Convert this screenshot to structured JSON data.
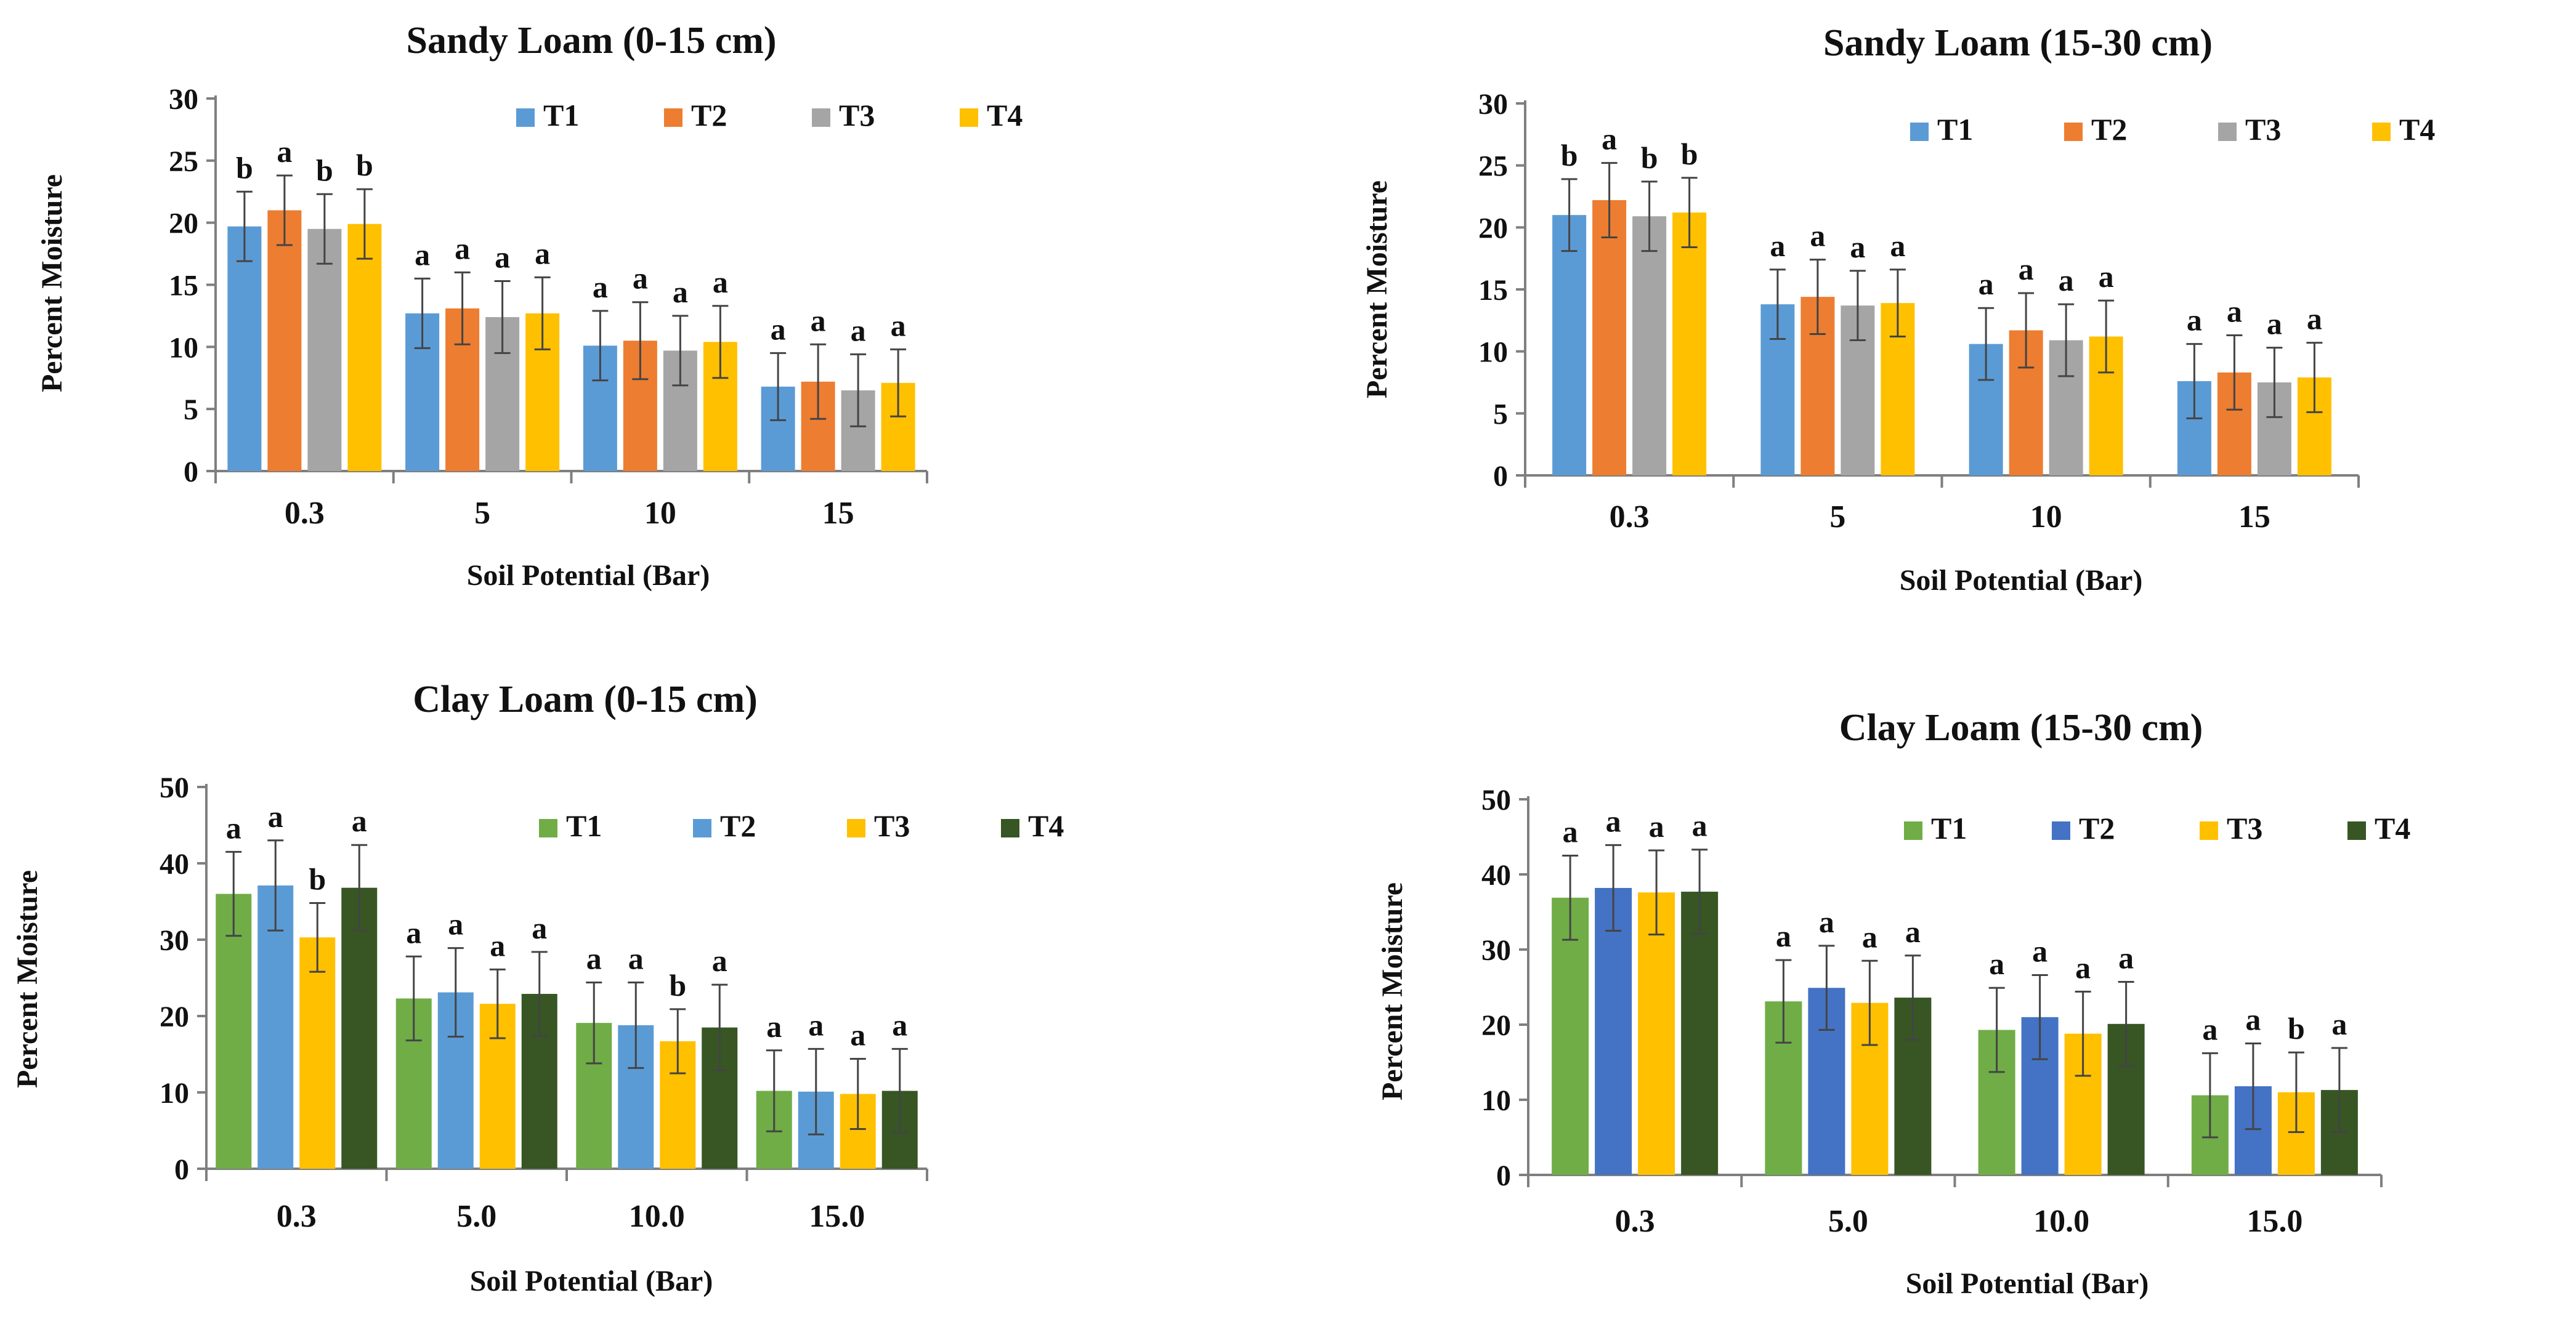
{
  "chart_data": [
    {
      "type": "bar",
      "title": "Sandy Loam (0-15 cm)",
      "xlabel": "Soil Potential (Bar)",
      "ylabel": "Percent Moisture",
      "ylim": [
        0,
        30
      ],
      "yticks": [
        "0",
        "5",
        "10",
        "15",
        "20",
        "25",
        "30"
      ],
      "categories": [
        "0.3",
        "5",
        "10",
        "15"
      ],
      "legend_position": "top-right",
      "series": [
        {
          "name": "T1",
          "color": "#5B9BD5",
          "values": [
            19.7,
            12.7,
            10.1,
            6.8
          ],
          "errors": [
            2.8,
            2.8,
            2.8,
            2.7
          ],
          "labels": [
            "b",
            "a",
            "a",
            "a"
          ]
        },
        {
          "name": "T2",
          "color": "#ED7D31",
          "values": [
            21.0,
            13.1,
            10.5,
            7.2
          ],
          "errors": [
            2.8,
            2.9,
            3.1,
            3.0
          ],
          "labels": [
            "a",
            "a",
            "a",
            "a"
          ]
        },
        {
          "name": "T3",
          "color": "#A5A5A5",
          "values": [
            19.5,
            12.4,
            9.7,
            6.5
          ],
          "errors": [
            2.8,
            2.9,
            2.8,
            2.9
          ],
          "labels": [
            "b",
            "a",
            "a",
            "a"
          ]
        },
        {
          "name": "T4",
          "color": "#FFC000",
          "values": [
            19.9,
            12.7,
            10.4,
            7.1
          ],
          "errors": [
            2.8,
            2.9,
            2.9,
            2.7
          ],
          "labels": [
            "b",
            "a",
            "a",
            "a"
          ]
        }
      ]
    },
    {
      "type": "bar",
      "title": "Sandy Loam (15-30 cm)",
      "xlabel": "Soil Potential (Bar)",
      "ylabel": "Percent Moisture",
      "ylim": [
        0,
        30
      ],
      "yticks": [
        "0",
        "5",
        "10",
        "15",
        "20",
        "25",
        "30"
      ],
      "categories": [
        "0.3",
        "5",
        "10",
        "15"
      ],
      "legend_position": "top-right",
      "series": [
        {
          "name": "T1",
          "color": "#5B9BD5",
          "values": [
            21.0,
            13.8,
            10.6,
            7.6
          ],
          "errors": [
            2.9,
            2.8,
            2.9,
            3.0
          ],
          "labels": [
            "b",
            "a",
            "a",
            "a"
          ]
        },
        {
          "name": "T2",
          "color": "#ED7D31",
          "values": [
            22.2,
            14.4,
            11.7,
            8.3
          ],
          "errors": [
            3.0,
            3.0,
            3.0,
            3.0
          ],
          "labels": [
            "a",
            "a",
            "a",
            "a"
          ]
        },
        {
          "name": "T3",
          "color": "#A5A5A5",
          "values": [
            20.9,
            13.7,
            10.9,
            7.5
          ],
          "errors": [
            2.8,
            2.8,
            2.9,
            2.8
          ],
          "labels": [
            "b",
            "a",
            "a",
            "a"
          ]
        },
        {
          "name": "T4",
          "color": "#FFC000",
          "values": [
            21.2,
            13.9,
            11.2,
            7.9
          ],
          "errors": [
            2.8,
            2.7,
            2.9,
            2.8
          ],
          "labels": [
            "b",
            "a",
            "a",
            "a"
          ]
        }
      ]
    },
    {
      "type": "bar",
      "title": "Clay Loam (0-15 cm)",
      "xlabel": "Soil Potential (Bar)",
      "ylabel": "Percent Moisture",
      "ylim": [
        0,
        50
      ],
      "yticks": [
        "0",
        "10",
        "20",
        "30",
        "40",
        "50"
      ],
      "categories": [
        "0.3",
        "5.0",
        "10.0",
        "15.0"
      ],
      "legend_position": "top-right",
      "series": [
        {
          "name": "T1",
          "color": "#70AD47",
          "values": [
            36.0,
            22.3,
            19.1,
            10.2
          ],
          "errors": [
            5.5,
            5.5,
            5.3,
            5.3
          ],
          "labels": [
            "a",
            "a",
            "a",
            "a"
          ]
        },
        {
          "name": "T2",
          "color": "#5B9BD5",
          "values": [
            37.1,
            23.1,
            18.8,
            10.1
          ],
          "errors": [
            5.9,
            5.8,
            5.6,
            5.6
          ],
          "labels": [
            "a",
            "a",
            "a",
            "a"
          ]
        },
        {
          "name": "T3",
          "color": "#FFC000",
          "values": [
            30.3,
            21.6,
            16.7,
            9.8
          ],
          "errors": [
            4.5,
            4.5,
            4.2,
            4.6
          ],
          "labels": [
            "b",
            "a",
            "b",
            "a"
          ]
        },
        {
          "name": "T4",
          "color": "#375623",
          "values": [
            36.8,
            22.9,
            18.5,
            10.2
          ],
          "errors": [
            5.6,
            5.5,
            5.6,
            5.5
          ],
          "labels": [
            "a",
            "a",
            "a",
            "a"
          ]
        }
      ]
    },
    {
      "type": "bar",
      "title": "Clay Loam (15-30 cm)",
      "xlabel": "Soil Potential (Bar)",
      "ylabel": "Percent Moisture",
      "ylim": [
        0,
        50
      ],
      "yticks": [
        "0",
        "10",
        "20",
        "30",
        "40",
        "50"
      ],
      "categories": [
        "0.3",
        "5.0",
        "10.0",
        "15.0"
      ],
      "legend_position": "top-right",
      "series": [
        {
          "name": "T1",
          "color": "#70AD47",
          "values": [
            36.9,
            23.1,
            19.3,
            10.6
          ],
          "errors": [
            5.6,
            5.5,
            5.6,
            5.6
          ],
          "labels": [
            "a",
            "a",
            "a",
            "a"
          ]
        },
        {
          "name": "T2",
          "color": "#4472C4",
          "values": [
            38.2,
            24.9,
            21.0,
            11.8
          ],
          "errors": [
            5.7,
            5.6,
            5.6,
            5.7
          ],
          "labels": [
            "a",
            "a",
            "a",
            "a"
          ]
        },
        {
          "name": "T3",
          "color": "#FFC000",
          "values": [
            37.6,
            22.9,
            18.8,
            11.0
          ],
          "errors": [
            5.6,
            5.6,
            5.6,
            5.3
          ],
          "labels": [
            "a",
            "a",
            "a",
            "b"
          ]
        },
        {
          "name": "T4",
          "color": "#375623",
          "values": [
            37.7,
            23.6,
            20.1,
            11.3
          ],
          "errors": [
            5.6,
            5.6,
            5.6,
            5.6
          ],
          "labels": [
            "a",
            "a",
            "a",
            "a"
          ]
        }
      ]
    }
  ]
}
